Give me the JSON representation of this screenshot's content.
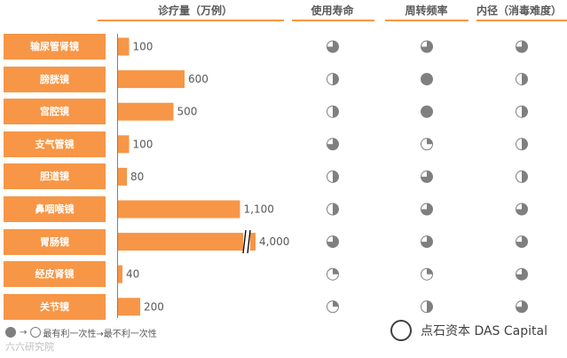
{
  "chart_data": {
    "type": "bar",
    "headers": {
      "volume": "诊疗量（万例）",
      "life": "使用寿命",
      "turnover": "周转频率",
      "diameter": "内径（消毒难度）"
    },
    "categories": [
      "输尿管肾镜",
      "膀胱镜",
      "宫腔镜",
      "支气管镜",
      "胆道镜",
      "鼻咽喉镜",
      "胃肠镜",
      "经皮肾镜",
      "关节镜"
    ],
    "values": [
      100,
      600,
      500,
      100,
      80,
      1100,
      4000,
      40,
      200
    ],
    "value_labels": [
      "100",
      "600",
      "500",
      "100",
      "80",
      "1,100",
      "4,000",
      "40",
      "200"
    ],
    "broken_axis_category": "胃肠镜",
    "bar_color": "#f79646",
    "icon_color": "#7f7f7f",
    "ratings": {
      "life": [
        0.75,
        0.5,
        0.5,
        0.75,
        0.5,
        0.5,
        0.75,
        0.25,
        0.25
      ],
      "turnover": [
        0.75,
        1.0,
        1.0,
        0.25,
        0.75,
        0.75,
        0.75,
        0.25,
        0.5
      ],
      "diameter": [
        0.75,
        0.5,
        0.5,
        0.5,
        0.5,
        0.75,
        0.75,
        0.75,
        0.75
      ]
    },
    "legend": {
      "text": "最有利一次性→最不利一次性"
    }
  },
  "watermarks": {
    "left": "六六研究院",
    "right": "点石资本 DAS Capital"
  }
}
